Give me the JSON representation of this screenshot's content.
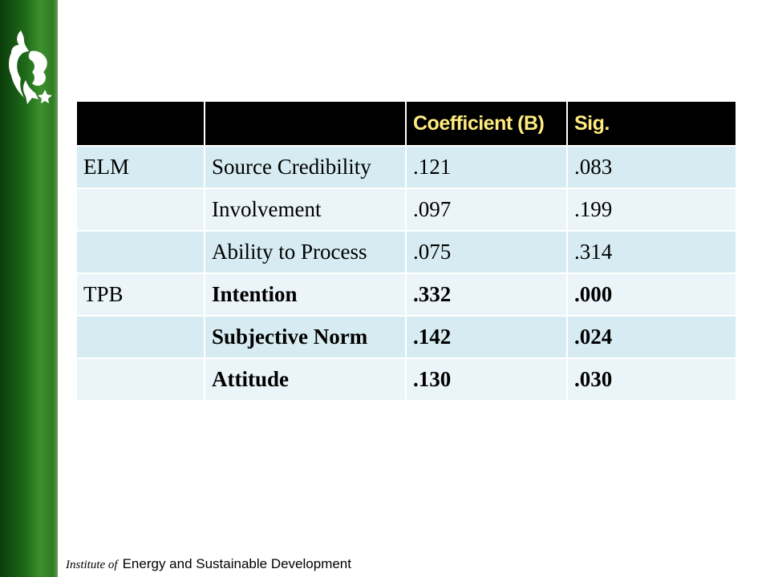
{
  "header": {
    "col1": "",
    "col2": "",
    "col3": "Coefficient (B)",
    "col4": "Sig."
  },
  "rows": [
    {
      "group": "ELM",
      "variable": "Source Credibility",
      "coefficient": ".121",
      "sig": ".083",
      "emphasized": false
    },
    {
      "group": "",
      "variable": "Involvement",
      "coefficient": ".097",
      "sig": ".199",
      "emphasized": false
    },
    {
      "group": "",
      "variable": "Ability to Process",
      "coefficient": ".075",
      "sig": ".314",
      "emphasized": false
    },
    {
      "group": "TPB",
      "variable": "Intention",
      "coefficient": ".332",
      "sig": ".000",
      "emphasized": true
    },
    {
      "group": "",
      "variable": "Subjective Norm",
      "coefficient": ".142",
      "sig": ".024",
      "emphasized": true
    },
    {
      "group": "",
      "variable": "Attitude",
      "coefficient": ".130",
      "sig": ".030",
      "emphasized": true
    }
  ],
  "footer": {
    "prefix": "Institute of",
    "text": "Energy and Sustainable Development"
  },
  "logo": {
    "icon": "lion-crest-icon"
  },
  "colors": {
    "band": "#1f6b19",
    "header_bg": "#000000",
    "header_text": "#ffeb80",
    "row_dark": "#d6ecf2",
    "row_light": "#ebf5f9"
  }
}
